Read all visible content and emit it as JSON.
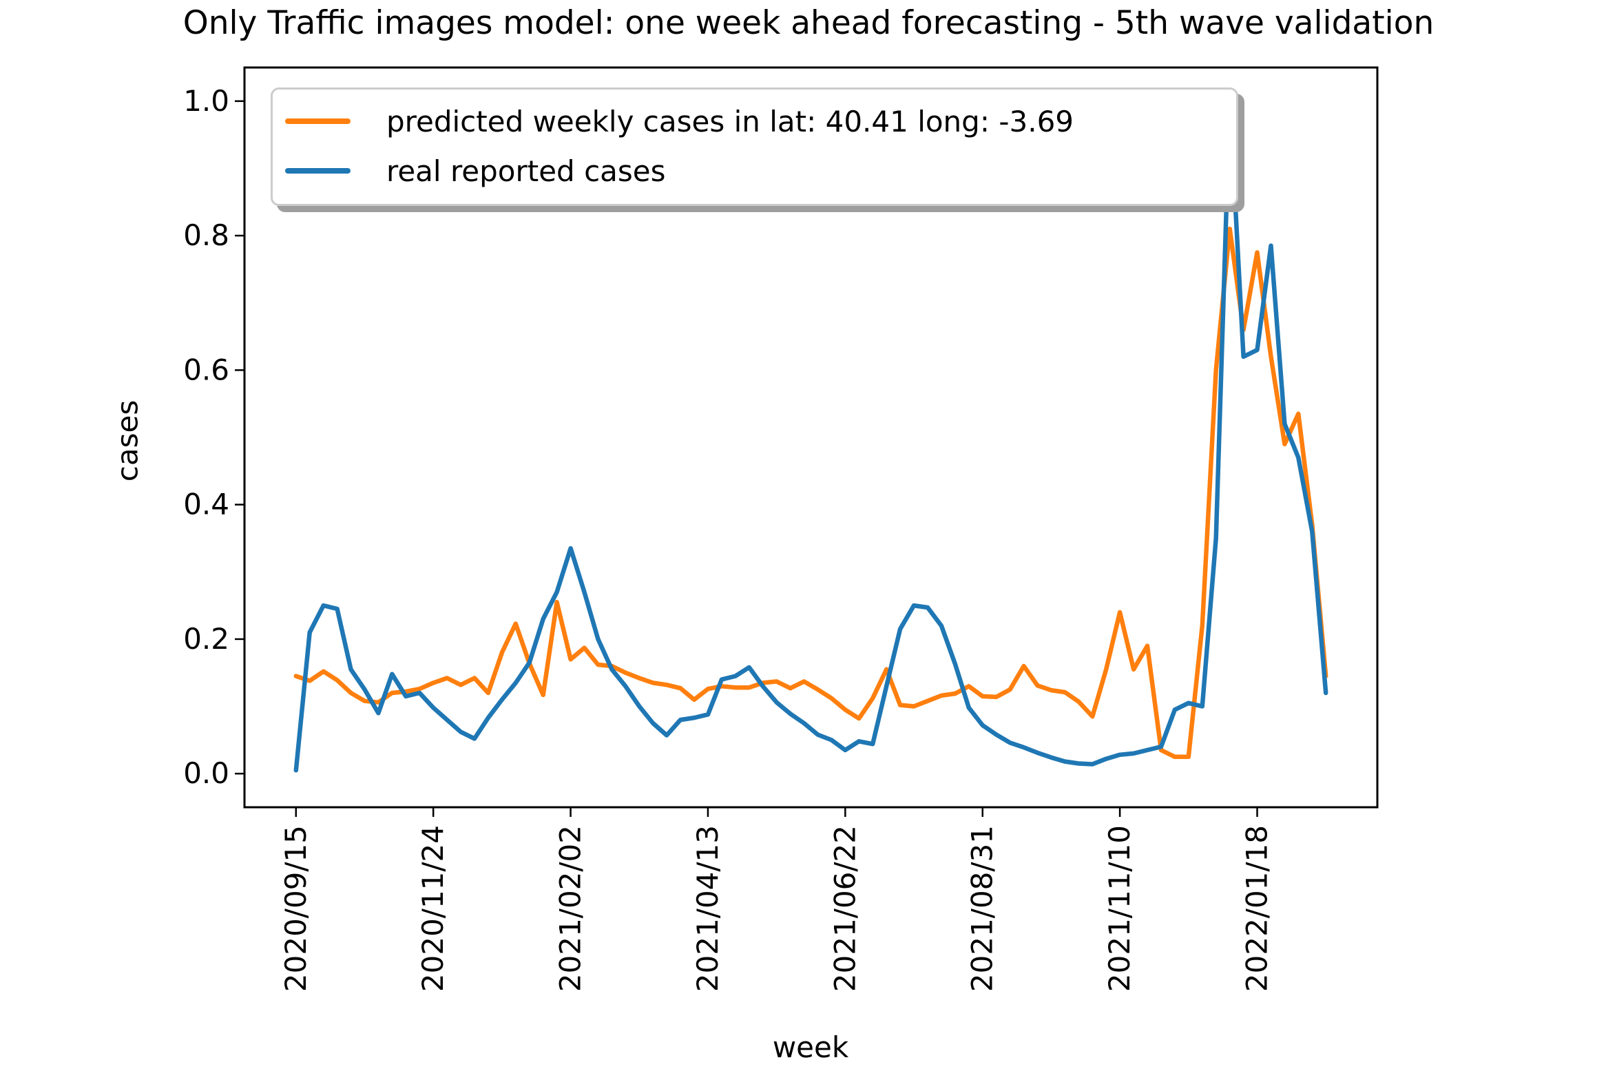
{
  "chart_data": {
    "type": "line",
    "title": "Only Traffic images model: one week ahead forecasting - 5th wave validation",
    "xlabel": "week",
    "ylabel": "cases",
    "grid": false,
    "legend_position": "upper left",
    "ylim": [
      -0.05,
      1.05
    ],
    "ytick_labels": [
      "0.0",
      "0.2",
      "0.4",
      "0.6",
      "0.8",
      "1.0"
    ],
    "ytick_values": [
      0.0,
      0.2,
      0.4,
      0.6,
      0.8,
      1.0
    ],
    "x_tick_labels": [
      "2020/09/15",
      "2020/11/24",
      "2021/02/02",
      "2021/04/13",
      "2021/06/22",
      "2021/08/31",
      "2021/11/10",
      "2022/01/18"
    ],
    "x_tick_indices": [
      0,
      10,
      20,
      30,
      40,
      50,
      60,
      70
    ],
    "n_points": 76,
    "x_unit": "weekly data points",
    "series": [
      {
        "name": "predicted weekly cases in lat: 40.41 long: -3.69",
        "color": "#ff7f0e",
        "values": [
          0.145,
          0.138,
          0.152,
          0.139,
          0.12,
          0.108,
          0.106,
          0.12,
          0.122,
          0.126,
          0.135,
          0.142,
          0.132,
          0.142,
          0.12,
          0.18,
          0.223,
          0.164,
          0.117,
          0.255,
          0.17,
          0.187,
          0.162,
          0.16,
          0.15,
          0.142,
          0.135,
          0.132,
          0.127,
          0.11,
          0.126,
          0.13,
          0.128,
          0.128,
          0.135,
          0.137,
          0.127,
          0.137,
          0.125,
          0.112,
          0.095,
          0.082,
          0.112,
          0.155,
          0.102,
          0.1,
          0.108,
          0.116,
          0.119,
          0.13,
          0.115,
          0.114,
          0.125,
          0.16,
          0.131,
          0.124,
          0.121,
          0.107,
          0.085,
          0.155,
          0.24,
          0.155,
          0.19,
          0.035,
          0.025,
          0.025,
          0.22,
          0.6,
          0.81,
          0.66,
          0.775,
          0.62,
          0.49,
          0.535,
          0.37,
          0.145
        ]
      },
      {
        "name": "real reported cases",
        "color": "#1f77b4",
        "values": [
          0.005,
          0.21,
          0.25,
          0.245,
          0.155,
          0.125,
          0.09,
          0.148,
          0.115,
          0.12,
          0.098,
          0.08,
          0.062,
          0.052,
          0.083,
          0.11,
          0.135,
          0.165,
          0.23,
          0.27,
          0.335,
          0.27,
          0.2,
          0.155,
          0.13,
          0.1,
          0.075,
          0.057,
          0.08,
          0.083,
          0.088,
          0.14,
          0.145,
          0.158,
          0.13,
          0.106,
          0.089,
          0.075,
          0.058,
          0.05,
          0.035,
          0.048,
          0.044,
          0.13,
          0.215,
          0.25,
          0.247,
          0.22,
          0.163,
          0.098,
          0.072,
          0.058,
          0.046,
          0.039,
          0.031,
          0.024,
          0.018,
          0.015,
          0.014,
          0.022,
          0.028,
          0.03,
          0.035,
          0.04,
          0.095,
          0.105,
          0.1,
          0.35,
          1.0,
          0.62,
          0.63,
          0.785,
          0.52,
          0.47,
          0.36,
          0.12
        ]
      }
    ],
    "axis_color": "#000000"
  }
}
